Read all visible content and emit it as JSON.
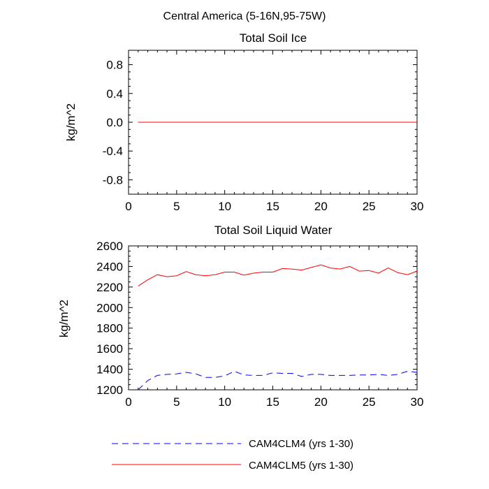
{
  "figure": {
    "main_title": "Central America (5-16N,95-75W)"
  },
  "chart_data": [
    {
      "type": "line",
      "title": "Total Soil Ice",
      "xlabel": "",
      "ylabel": "kg/m^2",
      "xlim": [
        0,
        30
      ],
      "ylim": [
        -1,
        1
      ],
      "xticks": [
        0,
        5,
        10,
        15,
        20,
        25,
        30
      ],
      "yticks": [
        -0.8,
        -0.4,
        0.0,
        0.4,
        0.8
      ],
      "ytick_labels": [
        "-0.8",
        "-0.4",
        "0.0",
        "0.4",
        "0.8"
      ],
      "grid": false,
      "x": [
        1,
        2,
        3,
        4,
        5,
        6,
        7,
        8,
        9,
        10,
        11,
        12,
        13,
        14,
        15,
        16,
        17,
        18,
        19,
        20,
        21,
        22,
        23,
        24,
        25,
        26,
        27,
        28,
        29,
        30
      ],
      "series": [
        {
          "name": "CAM4CLM4 (yrs 1-30)",
          "color": "#0000ff",
          "dash": "dashed",
          "values": [
            0,
            0,
            0,
            0,
            0,
            0,
            0,
            0,
            0,
            0,
            0,
            0,
            0,
            0,
            0,
            0,
            0,
            0,
            0,
            0,
            0,
            0,
            0,
            0,
            0,
            0,
            0,
            0,
            0,
            0
          ]
        },
        {
          "name": "CAM4CLM5 (yrs 1-30)",
          "color": "#ff0000",
          "dash": "solid",
          "values": [
            0,
            0,
            0,
            0,
            0,
            0,
            0,
            0,
            0,
            0,
            0,
            0,
            0,
            0,
            0,
            0,
            0,
            0,
            0,
            0,
            0,
            0,
            0,
            0,
            0,
            0,
            0,
            0,
            0,
            0
          ]
        }
      ]
    },
    {
      "type": "line",
      "title": "Total Soil Liquid Water",
      "xlabel": "",
      "ylabel": "kg/m^2",
      "xlim": [
        0,
        30
      ],
      "ylim": [
        1200,
        2600
      ],
      "xticks": [
        0,
        5,
        10,
        15,
        20,
        25,
        30
      ],
      "yticks": [
        1200,
        1400,
        1600,
        1800,
        2000,
        2200,
        2400,
        2600
      ],
      "ytick_labels": [
        "1200",
        "1400",
        "1600",
        "1800",
        "2000",
        "2200",
        "2400",
        "2600"
      ],
      "grid": false,
      "x": [
        1,
        2,
        3,
        4,
        5,
        6,
        7,
        8,
        9,
        10,
        11,
        12,
        13,
        14,
        15,
        16,
        17,
        18,
        19,
        20,
        21,
        22,
        23,
        24,
        25,
        26,
        27,
        28,
        29,
        30
      ],
      "series": [
        {
          "name": "CAM4CLM4 (yrs 1-30)",
          "color": "#0000ff",
          "dash": "dashed",
          "values": [
            1200,
            1290,
            1340,
            1350,
            1355,
            1370,
            1355,
            1320,
            1320,
            1335,
            1380,
            1345,
            1340,
            1340,
            1365,
            1360,
            1360,
            1330,
            1350,
            1350,
            1340,
            1340,
            1340,
            1345,
            1345,
            1350,
            1340,
            1350,
            1380,
            1370
          ]
        },
        {
          "name": "CAM4CLM5 (yrs 1-30)",
          "color": "#ff0000",
          "dash": "solid",
          "values": [
            2210,
            2270,
            2320,
            2300,
            2310,
            2350,
            2320,
            2310,
            2320,
            2345,
            2345,
            2315,
            2335,
            2345,
            2345,
            2380,
            2375,
            2365,
            2390,
            2415,
            2385,
            2375,
            2400,
            2355,
            2360,
            2335,
            2385,
            2340,
            2320,
            2355
          ]
        }
      ]
    }
  ],
  "legend": {
    "position": "bottom",
    "entries": [
      {
        "label": "CAM4CLM4 (yrs 1-30)",
        "color": "#0000ff",
        "dash": "dashed"
      },
      {
        "label": "CAM4CLM5 (yrs 1-30)",
        "color": "#ff0000",
        "dash": "solid"
      }
    ]
  }
}
